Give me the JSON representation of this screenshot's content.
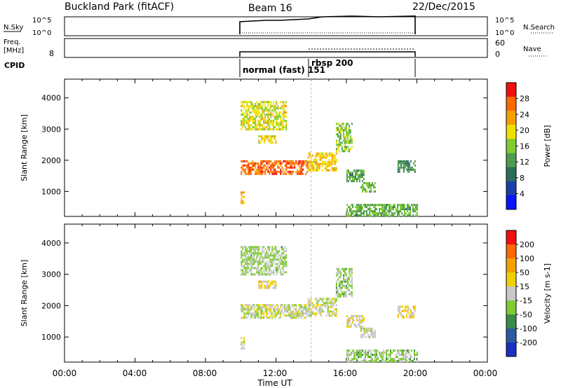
{
  "header": {
    "station": "Buckland Park (fitACF)",
    "beam": "Beam 16",
    "date": "22/Dec/2015"
  },
  "panels": {
    "nsky": {
      "left_label": "N.Sky",
      "left_ticks": [
        "10^5",
        "10^0"
      ],
      "right_ticks": [
        "10^5",
        "10^0"
      ],
      "right_label": "N.Search"
    },
    "freq": {
      "left_label_1": "Freq.",
      "left_label_2": "[MHz]",
      "left_ticks": [
        "8"
      ],
      "right_ticks": [
        "60",
        "0"
      ],
      "right_label": "Nave"
    },
    "cpid": {
      "label": "CPID",
      "modes": [
        "normal (fast) 151",
        "rbsp 200"
      ]
    }
  },
  "x_axis": {
    "label": "Time UT",
    "ticks": [
      "00:00",
      "04:00",
      "08:00",
      "12:00",
      "16:00",
      "20:00",
      "00:00"
    ]
  },
  "colors": {
    "power_scale": [
      "#0a14ff",
      "#1b3fa8",
      "#2b6e5b",
      "#4f9b4f",
      "#7fcc30",
      "#f0e000",
      "#f5a000",
      "#ff6a00",
      "#f01010"
    ],
    "velocity_scale": [
      "#f01010",
      "#ff6a00",
      "#f5a000",
      "#f0d000",
      "#c8c8c8",
      "#7fcc30",
      "#3a8a4a",
      "#2a5aa0",
      "#1a30c0"
    ]
  },
  "chart_data": [
    {
      "type": "heatmap",
      "title": "Power",
      "ylabel": "Slant Range [km]",
      "xlabel": "",
      "ylim": [
        200,
        4600
      ],
      "xlim": [
        0,
        24
      ],
      "y_ticks": [
        "1000",
        "2000",
        "3000",
        "4000"
      ],
      "colorbar": {
        "label": "Power [dB]",
        "ticks": [
          "4",
          "8",
          "12",
          "16",
          "20",
          "24",
          "28"
        ],
        "range": [
          0,
          32
        ]
      },
      "regions": [
        {
          "t0": 10.0,
          "t1": 13.8,
          "r0": 1550,
          "r1": 2000,
          "value": 27
        },
        {
          "t0": 13.8,
          "t1": 15.4,
          "r0": 1650,
          "r1": 2250,
          "value": 21
        },
        {
          "t0": 15.4,
          "t1": 16.3,
          "r0": 2300,
          "r1": 3200,
          "value": 16
        },
        {
          "t0": 10.0,
          "t1": 12.6,
          "r0": 3000,
          "r1": 3900,
          "value": 19
        },
        {
          "t0": 11.0,
          "t1": 12.0,
          "r0": 2550,
          "r1": 2800,
          "value": 20
        },
        {
          "t0": 16.0,
          "t1": 17.0,
          "r0": 1300,
          "r1": 1700,
          "value": 13
        },
        {
          "t0": 16.8,
          "t1": 17.6,
          "r0": 1000,
          "r1": 1300,
          "value": 14
        },
        {
          "t0": 18.9,
          "t1": 19.9,
          "r0": 1650,
          "r1": 2000,
          "value": 11
        },
        {
          "t0": 16.0,
          "t1": 20.0,
          "r0": 250,
          "r1": 600,
          "value": 14
        },
        {
          "t0": 10.0,
          "t1": 10.2,
          "r0": 600,
          "r1": 1000,
          "value": 22
        }
      ]
    },
    {
      "type": "heatmap",
      "title": "Velocity",
      "ylabel": "Slant Range [km]",
      "xlabel": "Time UT",
      "ylim": [
        200,
        4600
      ],
      "xlim": [
        0,
        24
      ],
      "y_ticks": [
        "1000",
        "2000",
        "3000",
        "4000"
      ],
      "colorbar": {
        "label": "Velocity [m s-1]",
        "ticks": [
          "200",
          "100",
          "50",
          "15",
          "-15",
          "-50",
          "-100",
          "-200"
        ],
        "range": [
          -250,
          250
        ]
      },
      "regions": [
        {
          "t0": 10.0,
          "t1": 13.8,
          "r0": 1600,
          "r1": 2050,
          "value": 0
        },
        {
          "t0": 13.8,
          "t1": 15.4,
          "r0": 1700,
          "r1": 2250,
          "value": 0
        },
        {
          "t0": 15.4,
          "t1": 16.3,
          "r0": 2300,
          "r1": 3200,
          "value": -40
        },
        {
          "t0": 10.0,
          "t1": 12.6,
          "r0": 3000,
          "r1": 3900,
          "value": -30
        },
        {
          "t0": 11.0,
          "t1": 12.0,
          "r0": 2550,
          "r1": 2800,
          "value": 40
        },
        {
          "t0": 16.0,
          "t1": 17.0,
          "r0": 1300,
          "r1": 1700,
          "value": 30
        },
        {
          "t0": 16.8,
          "t1": 17.6,
          "r0": 1000,
          "r1": 1300,
          "value": 0
        },
        {
          "t0": 18.9,
          "t1": 19.9,
          "r0": 1650,
          "r1": 2000,
          "value": 40
        },
        {
          "t0": 16.0,
          "t1": 20.0,
          "r0": 250,
          "r1": 600,
          "value": -40
        },
        {
          "t0": 10.0,
          "t1": 10.2,
          "r0": 600,
          "r1": 1000,
          "value": 0
        }
      ]
    }
  ]
}
